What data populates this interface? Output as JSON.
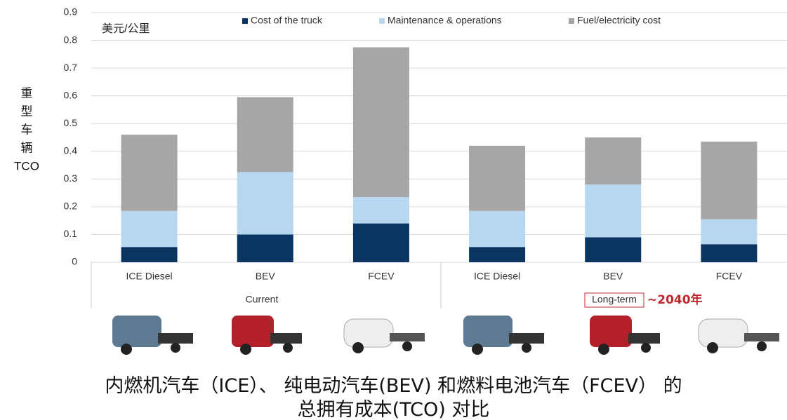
{
  "chart_data": {
    "type": "stacked_bar",
    "unit_label": "美元/公里",
    "ylabel": [
      "重",
      "型",
      "车",
      "辆",
      "TCO"
    ],
    "categories": [
      "ICE Diesel",
      "BEV",
      "FCEV",
      "ICE Diesel",
      "BEV",
      "FCEV"
    ],
    "group_labels": [
      "Current",
      "Long-term"
    ],
    "annotation": "~2040年",
    "series": [
      {
        "name": "Cost of the truck",
        "color": "#0b3561",
        "values": [
          0.055,
          0.1,
          0.14,
          0.055,
          0.09,
          0.065
        ]
      },
      {
        "name": "Maintenance & operations",
        "color": "#b7d7f0",
        "values": [
          0.13,
          0.225,
          0.095,
          0.13,
          0.19,
          0.09
        ]
      },
      {
        "name": "Fuel/electricity cost",
        "color": "#a6a6a6",
        "values": [
          0.275,
          0.27,
          0.54,
          0.235,
          0.17,
          0.28
        ]
      }
    ],
    "ylim": [
      0,
      0.9
    ],
    "yticks": [
      0,
      0.1,
      0.2,
      0.3,
      0.4,
      0.5,
      0.6,
      0.7,
      0.8,
      0.9
    ],
    "grid": true
  },
  "caption": [
    "内燃机汽车（ICE）、  纯电动汽车(BEV) 和燃料电池汽车（FCEV） 的",
    "总拥有成本(TCO) 对比"
  ]
}
